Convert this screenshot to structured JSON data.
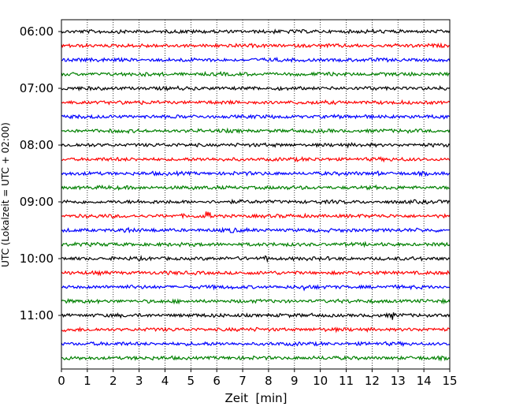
{
  "chart_data": {
    "type": "line",
    "chart_kind": "helicorder seismogram",
    "xlabel": "Zeit  [min]",
    "ylabel": "UTC (Lokalzeit = UTC + 02:00)",
    "xlim": [
      0,
      15
    ],
    "x_ticks": [
      "0",
      "1",
      "2",
      "3",
      "4",
      "5",
      "6",
      "7",
      "8",
      "9",
      "10",
      "11",
      "12",
      "13",
      "14",
      "15"
    ],
    "y_ticks": [
      "06:00",
      "07:00",
      "08:00",
      "09:00",
      "10:00",
      "11:00"
    ],
    "grid": "vertical dotted lines at each minute",
    "line_colors": [
      "#000000",
      "#ff0000",
      "#0000ff",
      "#008000"
    ],
    "traces": [
      {
        "start": "06:00",
        "color": "#000000"
      },
      {
        "start": "06:15",
        "color": "#ff0000"
      },
      {
        "start": "06:30",
        "color": "#0000ff"
      },
      {
        "start": "06:45",
        "color": "#008000"
      },
      {
        "start": "07:00",
        "color": "#000000"
      },
      {
        "start": "07:15",
        "color": "#ff0000"
      },
      {
        "start": "07:30",
        "color": "#0000ff"
      },
      {
        "start": "07:45",
        "color": "#008000"
      },
      {
        "start": "08:00",
        "color": "#000000"
      },
      {
        "start": "08:15",
        "color": "#ff0000"
      },
      {
        "start": "08:30",
        "color": "#0000ff"
      },
      {
        "start": "08:45",
        "color": "#008000"
      },
      {
        "start": "09:00",
        "color": "#000000"
      },
      {
        "start": "09:15",
        "color": "#ff0000"
      },
      {
        "start": "09:30",
        "color": "#0000ff"
      },
      {
        "start": "09:45",
        "color": "#008000"
      },
      {
        "start": "10:00",
        "color": "#000000"
      },
      {
        "start": "10:15",
        "color": "#ff0000"
      },
      {
        "start": "10:30",
        "color": "#0000ff"
      },
      {
        "start": "10:45",
        "color": "#008000"
      },
      {
        "start": "11:00",
        "color": "#000000"
      },
      {
        "start": "11:15",
        "color": "#ff0000"
      },
      {
        "start": "11:30",
        "color": "#0000ff"
      },
      {
        "start": "11:45",
        "color": "#008000"
      }
    ],
    "events": [
      {
        "start": "09:15",
        "minute": 5.65,
        "amplitude": "large"
      },
      {
        "start": "09:30",
        "minute": 2.5,
        "amplitude": "medium"
      },
      {
        "start": "09:30",
        "minute": 6.6,
        "amplitude": "small"
      },
      {
        "start": "08:30",
        "minute": 12.2,
        "amplitude": "small"
      },
      {
        "start": "10:00",
        "minute": 7.9,
        "amplitude": "small"
      },
      {
        "start": "10:30",
        "minute": 9.4,
        "amplitude": "small"
      },
      {
        "start": "11:00",
        "minute": 12.8,
        "amplitude": "small"
      }
    ]
  }
}
